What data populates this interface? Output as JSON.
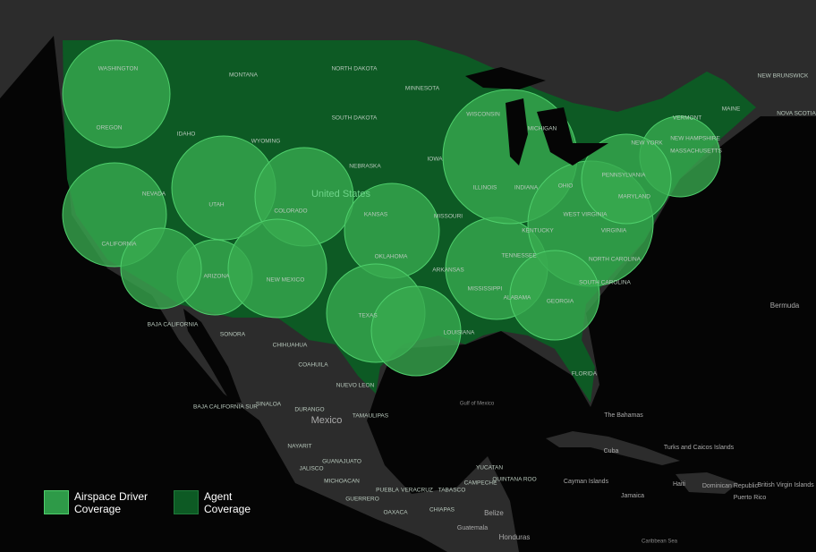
{
  "labels": [
    "WASHINGTON",
    "OREGON",
    "MONTANA",
    "IDAHO",
    "WYOMING",
    "NORTH DAKOTA",
    "SOUTH DAKOTA",
    "MINNESOTA",
    "NEBRASKA",
    "IOWA",
    "WISCONSIN",
    "MICHIGAN",
    "ILLINOIS",
    "INDIANA",
    "OHIO",
    "NEVADA",
    "UTAH",
    "COLORADO",
    "KANSAS",
    "MISSOURI",
    "CALIFORNIA",
    "ARIZONA",
    "NEW MEXICO",
    "OKLAHOMA",
    "ARKANSAS",
    "TEXAS",
    "LOUISIANA",
    "MISSISSIPPI",
    "ALABAMA",
    "GEORGIA",
    "TENNESSEE",
    "KENTUCKY",
    "WEST VIRGINIA",
    "VIRGINIA",
    "NORTH CAROLINA",
    "SOUTH CAROLINA",
    "FLORIDA",
    "PENNSYLVANIA",
    "NEW YORK",
    "MARYLAND",
    "VERMONT",
    "NEW HAMPSHIRE",
    "MASSACHUSETTS",
    "MAINE",
    "NEW BRUNSWICK",
    "NOVA SCOTIA",
    "United States",
    "Mexico",
    "Bermuda",
    "Gulf of Mexico",
    "The Bahamas",
    "Cuba",
    "Turks and Caicos Islands",
    "Cayman Islands",
    "Jamaica",
    "Haiti",
    "Dominican Republic",
    "Puerto Rico",
    "British Virgin Islands",
    "Caribbean Sea",
    "Belize",
    "Honduras",
    "Guatemala",
    "BAJA CALIFORNIA",
    "BAJA CALIFORNIA SUR",
    "SONORA",
    "CHIHUAHUA",
    "COAHUILA",
    "NUEVO LEON",
    "SINALOA",
    "DURANGO",
    "TAMAULIPAS",
    "NAYARIT",
    "JALISCO",
    "GUANAJUATO",
    "MICHOACAN",
    "GUERRERO",
    "OAXACA",
    "CHIAPAS",
    "YUCATAN",
    "CAMPECHE",
    "TABASCO",
    "VERACRUZ",
    "PUEBLA",
    "QUINTANA ROO"
  ],
  "legend": [
    {
      "label": "Airspace Driver Coverage"
    },
    {
      "label": "Agent Coverage"
    }
  ]
}
